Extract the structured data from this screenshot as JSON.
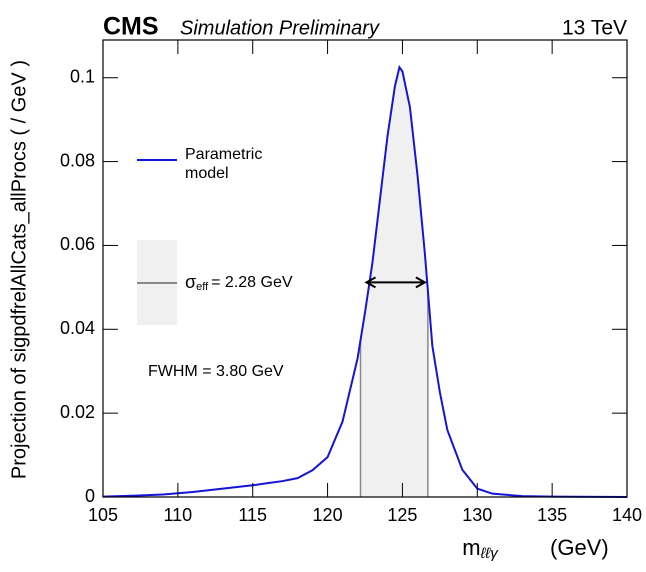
{
  "chart_data": {
    "type": "line",
    "experiment": "CMS",
    "subtitle": "Simulation Preliminary",
    "energy": "13 TeV",
    "x_label": {
      "main": "m",
      "sub": "ℓℓγ",
      "unit": "(GeV)"
    },
    "y_label": "Projection of sigpdfrelAllCats_allProcs ( / GeV )",
    "x": [
      105,
      107,
      109,
      111,
      113,
      115,
      116,
      117,
      118,
      119,
      120,
      121,
      122,
      122.5,
      123,
      123.5,
      124,
      124.5,
      124.8,
      125,
      125.5,
      126,
      126.5,
      127,
      127.5,
      128,
      129,
      130,
      131,
      133,
      135,
      140
    ],
    "series": [
      {
        "name": "Parametric model",
        "color": "#1515d8",
        "values": [
          0.0001,
          0.0003,
          0.0006,
          0.0012,
          0.002,
          0.0028,
          0.0033,
          0.0038,
          0.0045,
          0.0064,
          0.0095,
          0.018,
          0.033,
          0.044,
          0.056,
          0.071,
          0.086,
          0.098,
          0.1025,
          0.1015,
          0.093,
          0.077,
          0.058,
          0.036,
          0.025,
          0.016,
          0.0065,
          0.002,
          0.0008,
          0.0002,
          0.0001,
          0
        ]
      }
    ],
    "sigma_eff": {
      "symbol": "σ",
      "sub": "eff",
      "text": "= 2.28 GeV",
      "range": [
        122.2,
        126.7
      ],
      "color": "#888888",
      "fill": "#f0f0f0"
    },
    "fwhm": {
      "text": "FWHM = 3.80 GeV",
      "range": [
        122.6,
        126.5
      ],
      "height": 0.0512
    },
    "xlim": [
      105,
      140
    ],
    "ylim": [
      0,
      0.109
    ],
    "xticks": [
      105,
      110,
      115,
      120,
      125,
      130,
      135,
      140
    ],
    "yticks": [
      0,
      0.02,
      0.04,
      0.06,
      0.08,
      0.1
    ]
  }
}
